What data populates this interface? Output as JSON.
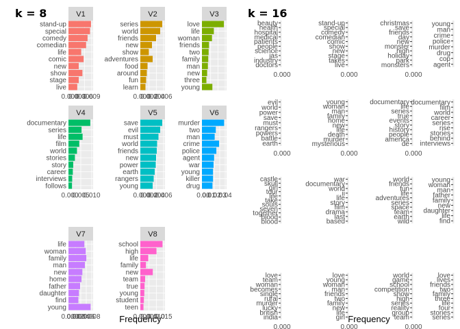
{
  "chart_data": [
    {
      "type": "bar",
      "title": "k = 8",
      "xlabel": "Frequency",
      "panels": [
        {
          "name": "V1",
          "color": "#F8766D",
          "xlim": [
            0,
            0.0095
          ],
          "ticks": [
            "0.000",
            "0.003",
            "0.006",
            "0.009"
          ],
          "categories": [
            "stand-up",
            "special",
            "comedy",
            "comedian",
            "life",
            "comic",
            "new",
            "show",
            "stage",
            "live"
          ],
          "values": [
            0.0092,
            0.0088,
            0.0078,
            0.0072,
            0.0052,
            0.0062,
            0.0042,
            0.0057,
            0.0042,
            0.0036
          ]
        },
        {
          "name": "V2",
          "color": "#CD9600",
          "xlim": [
            0,
            0.0068
          ],
          "ticks": [
            "0.000",
            "0.002",
            "0.004",
            "0.006"
          ],
          "categories": [
            "series",
            "world",
            "friends",
            "new",
            "show",
            "adventures",
            "food",
            "around",
            "fun",
            "learn"
          ],
          "values": [
            0.0064,
            0.0058,
            0.0046,
            0.0034,
            0.0025,
            0.0036,
            0.0021,
            0.0019,
            0.0017,
            0.0015
          ]
        },
        {
          "name": "V3",
          "color": "#7CAE00",
          "xlim": [
            0,
            0.0125
          ],
          "ticks": [],
          "categories": [
            "love",
            "life",
            "woman",
            "friends",
            "two",
            "family",
            "man",
            "new",
            "three",
            "young"
          ],
          "values": [
            0.0118,
            0.0064,
            0.0054,
            0.0038,
            0.0036,
            0.0034,
            0.0032,
            0.0028,
            0.0024,
            0.0056
          ]
        },
        {
          "name": "V4",
          "color": "#00BE67",
          "xlim": [
            0,
            0.0112
          ],
          "ticks": [
            "0.000",
            "0.005",
            "0.010"
          ],
          "categories": [
            "documentary",
            "series",
            "life",
            "film",
            "world",
            "stories",
            "story",
            "career",
            "interviews",
            "follows"
          ],
          "values": [
            0.0105,
            0.0063,
            0.0068,
            0.0052,
            0.0041,
            0.0031,
            0.0023,
            0.0021,
            0.0018,
            0.0017
          ]
        },
        {
          "name": "V5",
          "color": "#00BFC4",
          "xlim": [
            0,
            0.0068
          ],
          "ticks": [
            "0.000",
            "0.002",
            "0.004",
            "0.006"
          ],
          "categories": [
            "save",
            "evil",
            "must",
            "world",
            "friends",
            "new",
            "power",
            "earth",
            "rangers",
            "young"
          ],
          "values": [
            0.0064,
            0.0058,
            0.0053,
            0.0049,
            0.0048,
            0.0046,
            0.0045,
            0.0042,
            0.0039,
            0.0036
          ]
        },
        {
          "name": "V6",
          "color": "#00A9FF",
          "xlim": [
            0,
            0.042
          ],
          "ticks": [
            "0.00",
            "0.01",
            "0.02",
            "0.03",
            "0.04"
          ],
          "categories": [
            "murder",
            "two",
            "man",
            "crime",
            "police",
            "agent",
            "war",
            "young",
            "killer",
            "drug"
          ],
          "values": [
            0.04,
            0.025,
            0.023,
            0.031,
            0.026,
            0.022,
            0.021,
            0.02,
            0.02,
            0.019
          ]
        },
        {
          "name": "V7",
          "color": "#C77CFF",
          "xlim": [
            0,
            0.0082
          ],
          "ticks": [
            "0.000",
            "0.002",
            "0.004",
            "0.006",
            "0.008"
          ],
          "categories": [
            "life",
            "woman",
            "family",
            "man",
            "new",
            "home",
            "father",
            "daughter",
            "find",
            "young"
          ],
          "values": [
            0.0056,
            0.0061,
            0.0063,
            0.0058,
            0.0049,
            0.0046,
            0.0041,
            0.0037,
            0.0035,
            0.0078
          ]
        },
        {
          "name": "V8",
          "color": "#FF61CC",
          "xlim": [
            0,
            0.017
          ],
          "ticks": [
            "0.000",
            "0.005",
            "0.010",
            "0.015"
          ],
          "categories": [
            "school",
            "high",
            "life",
            "family",
            "new",
            "team",
            "true",
            "young",
            "student",
            "teen"
          ],
          "values": [
            0.0162,
            0.0118,
            0.0058,
            0.0041,
            0.0091,
            0.0035,
            0.0031,
            0.0029,
            0.0026,
            0.0023
          ]
        }
      ]
    },
    {
      "type": "bar",
      "title": "k = 16",
      "xlabel": "Frequency",
      "panels": [
        {
          "categories": [
            "beauty",
            "health",
            "hospital",
            "medical",
            "patients",
            "people",
            "science",
            "jas",
            "industry",
            "doctors"
          ],
          "ticks": [
            "0.000"
          ]
        },
        {
          "categories": [
            "stand-up",
            "special",
            "comedy",
            "comedian",
            "comic",
            "show",
            "new",
            "stage",
            "takes",
            "live"
          ],
          "ticks": [
            "0.000"
          ]
        },
        {
          "categories": [
            "christmas",
            "save",
            "friends",
            "day",
            "new",
            "monster",
            "high",
            "holiday",
            "park",
            "monsters"
          ],
          "ticks": [
            "0.000"
          ]
        },
        {
          "categories": [
            "young",
            "man",
            "crime",
            "police",
            "murder",
            "drug",
            "cop",
            "agent"
          ],
          "ticks": []
        },
        {
          "categories": [
            "evil",
            "world",
            "power",
            "save",
            "must",
            "rangers",
            "powers",
            "battle",
            "earth"
          ],
          "ticks": [
            "0.000"
          ]
        },
        {
          "categories": [
            "young",
            "woman",
            "man",
            "family",
            "home",
            "new",
            "life",
            "death",
            "murder",
            "mysterious"
          ],
          "ticks": [
            "0.000"
          ]
        },
        {
          "categories": [
            "documentary",
            "life",
            "series",
            "true",
            "events",
            "story",
            "history",
            "people",
            "america",
            "de"
          ],
          "ticks": [
            "0.000"
          ]
        },
        {
          "categories": [
            "documentary",
            "film",
            "world",
            "career",
            "series",
            "rise",
            "stories",
            "behind",
            "interviews"
          ],
          "ticks": []
        },
        {
          "categories": [
            "castle",
            "skull",
            "girl",
            "tour",
            "life",
            "take",
            "souls",
            "seven",
            "together",
            "blood",
            "blood"
          ],
          "ticks": []
        },
        {
          "categories": [
            "war",
            "documentary",
            "world",
            "ii",
            "life",
            "story",
            "film",
            "drama",
            "last",
            "based"
          ],
          "ticks": []
        },
        {
          "categories": [
            "world",
            "friends",
            "fun",
            "life",
            "adventures",
            "series",
            "space",
            "team",
            "earth",
            "wild"
          ],
          "ticks": []
        },
        {
          "categories": [
            "young",
            "woman",
            "man",
            "father",
            "family",
            "new",
            "daughter",
            "life",
            "find"
          ],
          "ticks": []
        },
        {
          "categories": [
            "love",
            "team",
            "woman",
            "becomes",
            "single",
            "rural",
            "murder",
            "lucky",
            "british",
            "india"
          ],
          "ticks": [
            "0.000"
          ]
        },
        {
          "categories": [
            "love",
            "young",
            "woman",
            "man",
            "friends",
            "two",
            "family",
            "new",
            "life",
            "girl"
          ],
          "ticks": [
            "0.000"
          ]
        },
        {
          "categories": [
            "world",
            "game",
            "school",
            "competition",
            "show",
            "high",
            "series",
            "reality",
            "group",
            "team"
          ],
          "ticks": [
            "0.000"
          ]
        },
        {
          "categories": [
            "love",
            "lives",
            "friends",
            "two",
            "family",
            "three",
            "life",
            "four",
            "stories",
            "series"
          ],
          "ticks": []
        }
      ]
    }
  ]
}
